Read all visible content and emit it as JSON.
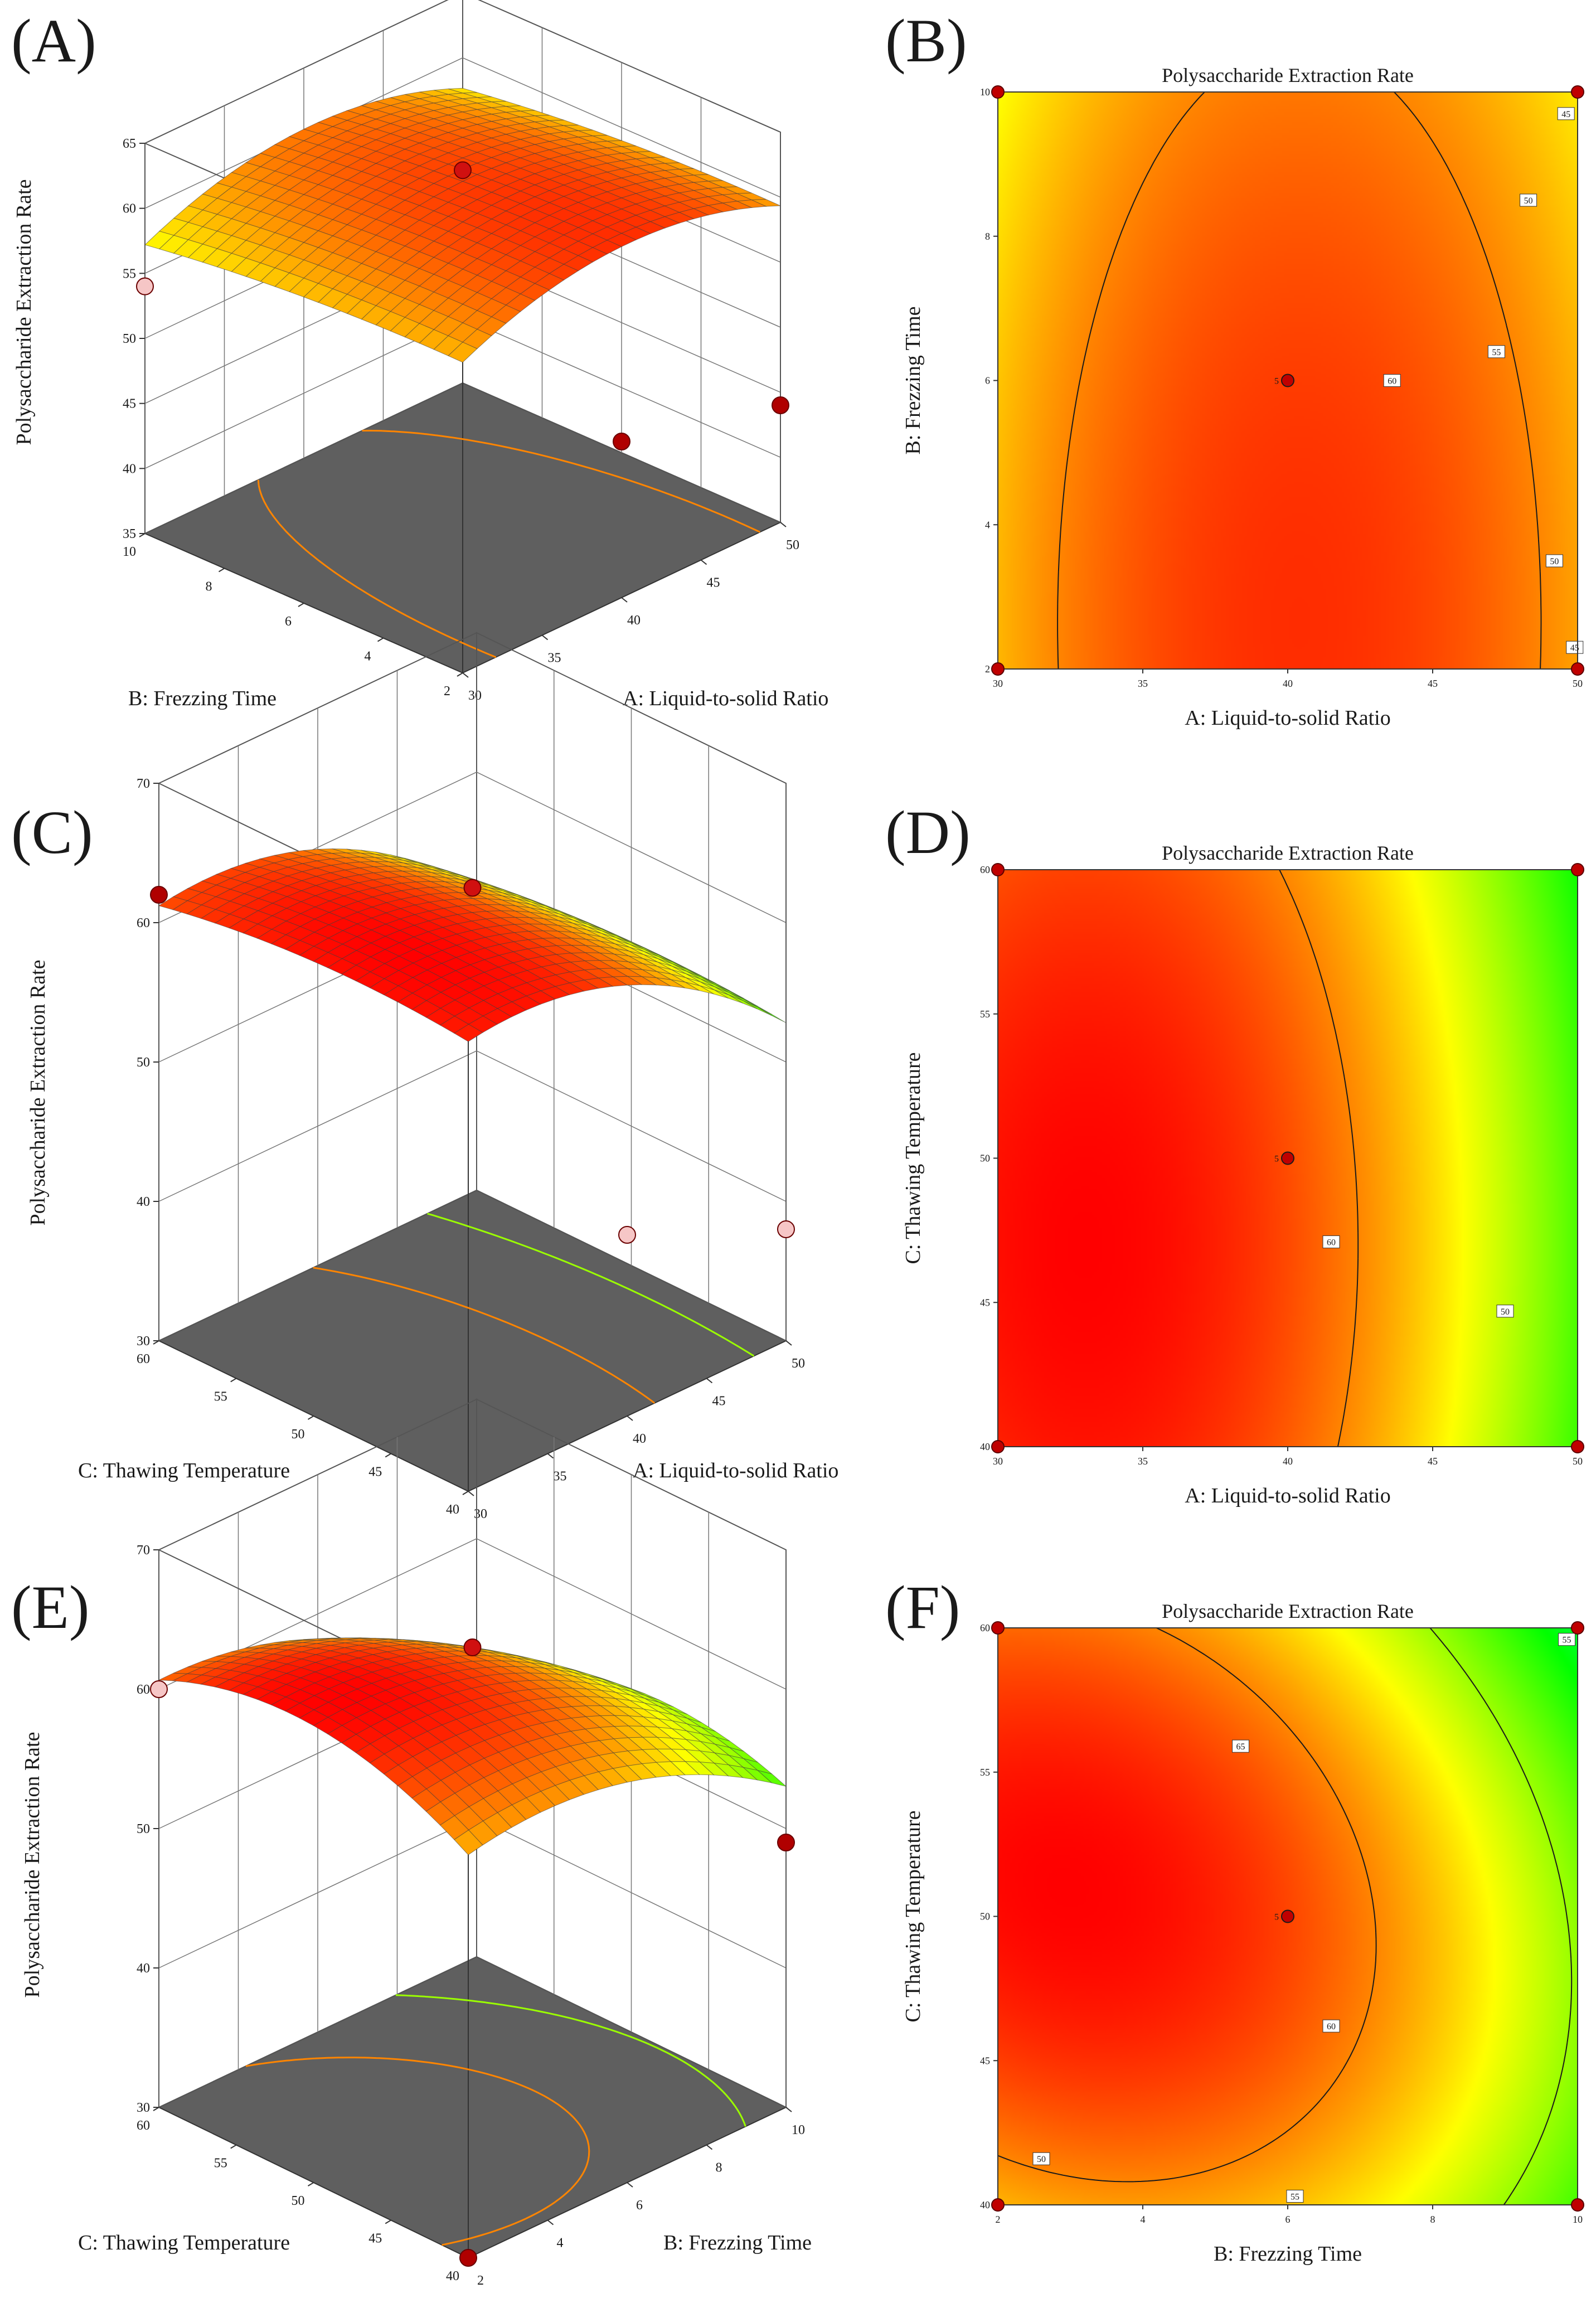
{
  "figure": {
    "type": "response-surface-figure",
    "panels": [
      "A",
      "B",
      "C",
      "D",
      "E",
      "F"
    ]
  },
  "chart_data": [
    {
      "type": "surface3d",
      "panel": "(A)",
      "response": "Polysaccharide Extraction Rate",
      "zlabel": "Polysaccharide Extraction Rate",
      "xlabel": "A: Liquid-to-solid Ratio",
      "ylabel": "B: Frezzing Time",
      "x_ticks": [
        "30",
        "35",
        "40",
        "45",
        "50"
      ],
      "y_ticks": [
        "2",
        "4",
        "6",
        "8",
        "10"
      ],
      "z_ticks": [
        "35",
        "40",
        "45",
        "50",
        "55",
        "60",
        "65"
      ],
      "xlim": [
        30,
        50
      ],
      "ylim": [
        2,
        10
      ],
      "zlim": [
        35,
        65
      ],
      "model": {
        "f0": 62.0,
        "ax": 0.52,
        "ay": 0.08,
        "bx": -11.5,
        "by": -2.0,
        "bxy": 0.0
      },
      "design_points": [
        {
          "x": 30,
          "y": 10,
          "z": 54,
          "color": "#f6c6c6"
        },
        {
          "x": 40,
          "y": 6,
          "z": 62.5,
          "color": "#d01010"
        },
        {
          "x": 40,
          "y": 2,
          "z": 47,
          "color": "#b00000"
        },
        {
          "x": 50,
          "y": 2,
          "z": 44,
          "color": "#b00000"
        }
      ],
      "floor_contour_levels": [
        45,
        50,
        55,
        60
      ]
    },
    {
      "type": "contour",
      "panel": "(B)",
      "title": "Polysaccharide Extraction Rate",
      "xlabel": "A: Liquid-to-solid Ratio",
      "ylabel": "B: Frezzing Time",
      "x_ticks": [
        "30",
        "35",
        "40",
        "45",
        "50"
      ],
      "y_ticks": [
        "2",
        "4",
        "6",
        "8",
        "10"
      ],
      "xlim": [
        30,
        50
      ],
      "ylim": [
        2,
        10
      ],
      "model": {
        "f0": 62.0,
        "ax": 0.52,
        "ay": 0.08,
        "bx": -11.5,
        "by": -2.0,
        "bxy": 0.0
      },
      "contour_levels": [
        45,
        50,
        55,
        60
      ],
      "contour_labels": [
        {
          "text": "45",
          "x": 49.6,
          "y": 9.7
        },
        {
          "text": "50",
          "x": 48.3,
          "y": 8.5
        },
        {
          "text": "55",
          "x": 47.2,
          "y": 6.4
        },
        {
          "text": "60",
          "x": 43.6,
          "y": 6.0
        },
        {
          "text": "50",
          "x": 49.2,
          "y": 3.5
        },
        {
          "text": "45",
          "x": 49.9,
          "y": 2.3
        }
      ],
      "center_point": {
        "x": 40,
        "y": 6,
        "label": "5"
      },
      "design_points": [
        {
          "x": 30,
          "y": 10
        },
        {
          "x": 50,
          "y": 10
        },
        {
          "x": 30,
          "y": 2
        },
        {
          "x": 50,
          "y": 2
        }
      ]
    },
    {
      "type": "surface3d",
      "panel": "(C)",
      "response": "Polysaccharide Extraction Rate",
      "zlabel": "Polysaccharide Extraction Rate",
      "xlabel": "A: Liquid-to-solid Ratio",
      "ylabel": "C: Thawing Temperature",
      "x_ticks": [
        "30",
        "35",
        "40",
        "45",
        "50"
      ],
      "y_ticks": [
        "40",
        "45",
        "50",
        "55",
        "60"
      ],
      "z_ticks": [
        "30",
        "40",
        "50",
        "60",
        "70"
      ],
      "xlim": [
        30,
        50
      ],
      "ylim": [
        40,
        60
      ],
      "zlim": [
        30,
        70
      ],
      "model": {
        "f0": 63.0,
        "ax": 0.15,
        "ay": 0.35,
        "bx": -13.5,
        "by": -3.5,
        "bxy": 0.0
      },
      "design_points": [
        {
          "x": 30,
          "y": 60,
          "z": 62,
          "color": "#b00000"
        },
        {
          "x": 40,
          "y": 50,
          "z": 62.5,
          "color": "#d01010"
        },
        {
          "x": 40,
          "y": 40,
          "z": 43,
          "color": "#f6c6c6"
        },
        {
          "x": 50,
          "y": 40,
          "z": 38,
          "color": "#f6c6c6"
        }
      ],
      "floor_contour_levels": [
        45,
        50,
        55,
        60
      ]
    },
    {
      "type": "contour",
      "panel": "(D)",
      "title": "Polysaccharide Extraction Rate",
      "xlabel": "A: Liquid-to-solid Ratio",
      "ylabel": "C: Thawing Temperature",
      "x_ticks": [
        "30",
        "35",
        "40",
        "45",
        "50"
      ],
      "y_ticks": [
        "40",
        "45",
        "50",
        "55",
        "60"
      ],
      "xlim": [
        30,
        50
      ],
      "ylim": [
        40,
        60
      ],
      "model": {
        "f0": 63.0,
        "ax": 0.15,
        "ay": 0.35,
        "bx": -13.5,
        "by": -3.5,
        "bxy": 0.0
      },
      "contour_levels": [
        50,
        60
      ],
      "contour_labels": [
        {
          "text": "60",
          "x": 41.5,
          "y": 47.1
        },
        {
          "text": "50",
          "x": 47.5,
          "y": 44.7
        }
      ],
      "center_point": {
        "x": 40,
        "y": 50,
        "label": "5"
      },
      "design_points": [
        {
          "x": 30,
          "y": 60
        },
        {
          "x": 50,
          "y": 60
        },
        {
          "x": 30,
          "y": 40
        },
        {
          "x": 50,
          "y": 40
        }
      ]
    },
    {
      "type": "surface3d",
      "panel": "(E)",
      "response": "Polysaccharide Extraction Rate",
      "zlabel": "Polysaccharide Extraction Rate",
      "xlabel": "B: Frezzing Time",
      "ylabel": "C: Thawing Temperature",
      "x_ticks": [
        "2",
        "4",
        "6",
        "8",
        "10"
      ],
      "y_ticks": [
        "40",
        "45",
        "50",
        "55",
        "60"
      ],
      "z_ticks": [
        "30",
        "40",
        "50",
        "60",
        "70"
      ],
      "xlim": [
        2,
        10
      ],
      "ylim": [
        40,
        60
      ],
      "zlim": [
        30,
        70
      ],
      "model": {
        "f0": 63.0,
        "ax": 0.12,
        "ay": 0.55,
        "bx": -11.0,
        "by": -12.0,
        "bxy": -4.5
      },
      "design_points": [
        {
          "x": 2,
          "y": 60,
          "z": 60,
          "color": "#f6c6c6"
        },
        {
          "x": 6,
          "y": 50,
          "z": 63,
          "color": "#d01010"
        },
        {
          "x": 2,
          "y": 40,
          "z": 30,
          "color": "#b00000"
        },
        {
          "x": 10,
          "y": 40,
          "z": 49,
          "color": "#b00000"
        }
      ],
      "floor_contour_levels": [
        45,
        50,
        55,
        60
      ]
    },
    {
      "type": "contour",
      "panel": "(F)",
      "title": "Polysaccharide Extraction Rate",
      "xlabel": "B: Frezzing Time",
      "ylabel": "C: Thawing Temperature",
      "x_ticks": [
        "2",
        "4",
        "6",
        "8",
        "10"
      ],
      "y_ticks": [
        "40",
        "45",
        "50",
        "55",
        "60"
      ],
      "xlim": [
        2,
        10
      ],
      "ylim": [
        40,
        60
      ],
      "model": {
        "f0": 63.0,
        "ax": 0.12,
        "ay": 0.55,
        "bx": -11.0,
        "by": -12.0,
        "bxy": -4.5
      },
      "contour_levels": [
        50,
        55,
        60,
        65
      ],
      "contour_labels": [
        {
          "text": "65",
          "x": 5.35,
          "y": 55.9
        },
        {
          "text": "60",
          "x": 6.6,
          "y": 46.2
        },
        {
          "text": "55",
          "x": 6.1,
          "y": 40.3
        },
        {
          "text": "50",
          "x": 2.6,
          "y": 41.6
        },
        {
          "text": "55",
          "x": 9.85,
          "y": 59.6
        }
      ],
      "center_point": {
        "x": 6,
        "y": 50,
        "label": "5"
      },
      "design_points": [
        {
          "x": 2,
          "y": 60
        },
        {
          "x": 10,
          "y": 60
        },
        {
          "x": 2,
          "y": 40
        },
        {
          "x": 10,
          "y": 40
        }
      ]
    }
  ]
}
